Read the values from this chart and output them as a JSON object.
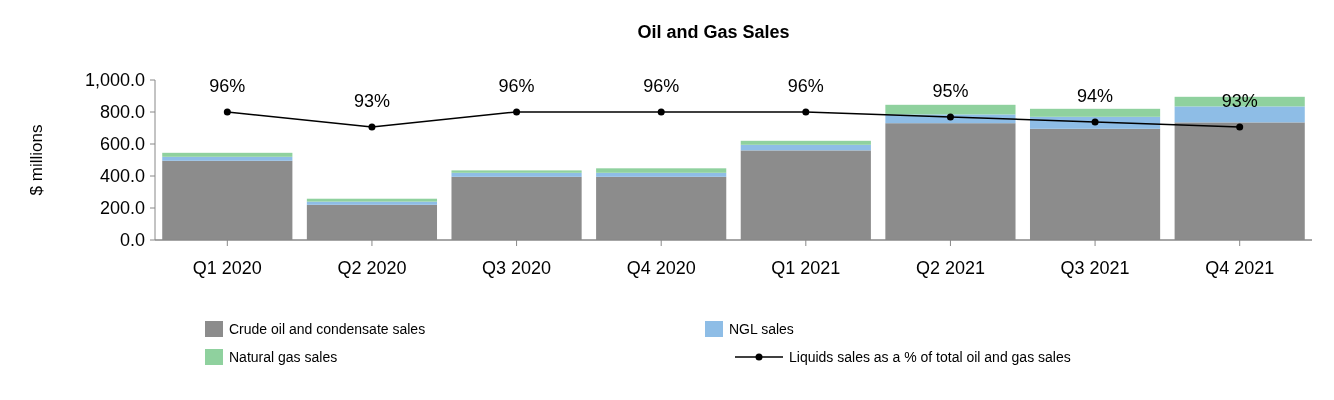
{
  "chart_data": {
    "type": "bar",
    "title": "Oil and Gas Sales",
    "ylabel": "$ millions",
    "categories": [
      "Q1 2020",
      "Q2 2020",
      "Q3 2020",
      "Q4 2020",
      "Q1 2021",
      "Q2 2021",
      "Q3 2021",
      "Q4 2021"
    ],
    "stacked": true,
    "series": [
      {
        "name": "Crude oil and condensate sales",
        "color": "#8c8c8c",
        "values": [
          495,
          220,
          395,
          395,
          560,
          730,
          695,
          735
        ]
      },
      {
        "name": "NGL sales",
        "color": "#8ebde6",
        "values": [
          25,
          20,
          25,
          25,
          35,
          55,
          75,
          100
        ]
      },
      {
        "name": "Natural gas sales",
        "color": "#8fd19e",
        "values": [
          25,
          18,
          15,
          28,
          25,
          60,
          50,
          60
        ]
      },
      {
        "name": "Liquids sales as a % of total oil and gas sales",
        "type": "line",
        "axis": "y2",
        "color": "#000000",
        "marker": "circle",
        "values": [
          96,
          93,
          96,
          96,
          96,
          95,
          94,
          93
        ],
        "value_labels": [
          "96%",
          "93%",
          "96%",
          "96%",
          "96%",
          "95%",
          "94%",
          "93%"
        ]
      }
    ],
    "ylim": [
      0,
      1000
    ],
    "yticks": [
      {
        "value": 0,
        "label": "0.0"
      },
      {
        "value": 200,
        "label": "200.0"
      },
      {
        "value": 400,
        "label": "400.0"
      },
      {
        "value": 600,
        "label": "600.0"
      },
      {
        "value": 800,
        "label": "800.0"
      },
      {
        "value": 1000,
        "label": "1,000.0"
      }
    ],
    "y2lim": [
      70.7,
      102.3
    ],
    "legend": "bottom"
  }
}
